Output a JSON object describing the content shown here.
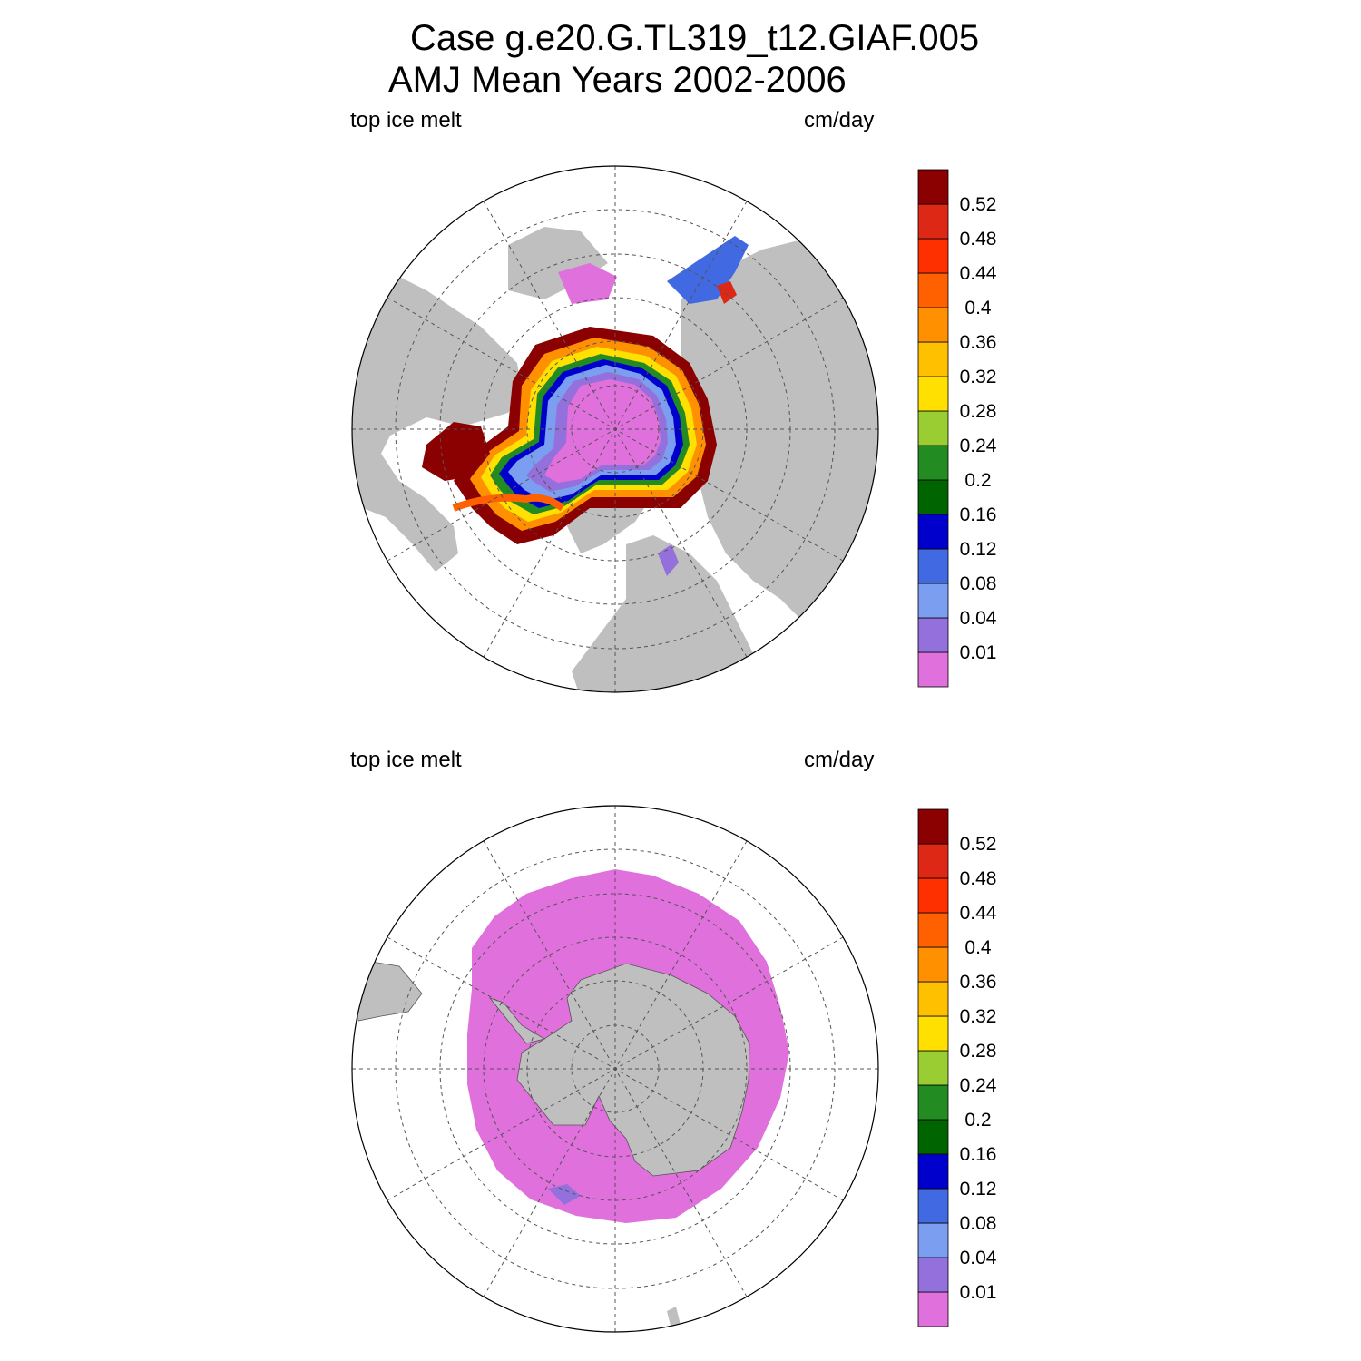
{
  "header": {
    "title_line1": "Case g.e20.G.TL319_t12.GIAF.005",
    "title_line2": "AMJ Mean   Years 2002-2006"
  },
  "panels": [
    {
      "id": "north",
      "left_label": "top ice melt",
      "right_label": "cm/day",
      "hemisphere": "Northern"
    },
    {
      "id": "south",
      "left_label": "top ice melt",
      "right_label": "cm/day",
      "hemisphere": "Southern"
    }
  ],
  "colorbar": {
    "levels": [
      "0.01",
      "0.04",
      "0.08",
      "0.12",
      "0.16",
      "0.2",
      "0.24",
      "0.28",
      "0.32",
      "0.36",
      "0.4",
      "0.44",
      "0.48",
      "0.52"
    ],
    "colors": [
      "#e070dc",
      "#9370db",
      "#7b9ef0",
      "#4169e1",
      "#0000cd",
      "#006400",
      "#228b22",
      "#9acd32",
      "#ffe000",
      "#ffc000",
      "#ff9000",
      "#ff6000",
      "#ff3000",
      "#dc2814",
      "#8b0000"
    ]
  },
  "map_colors": {
    "land": "#bfbfbf",
    "ocean": "#ffffff",
    "gridline": "#555555"
  }
}
